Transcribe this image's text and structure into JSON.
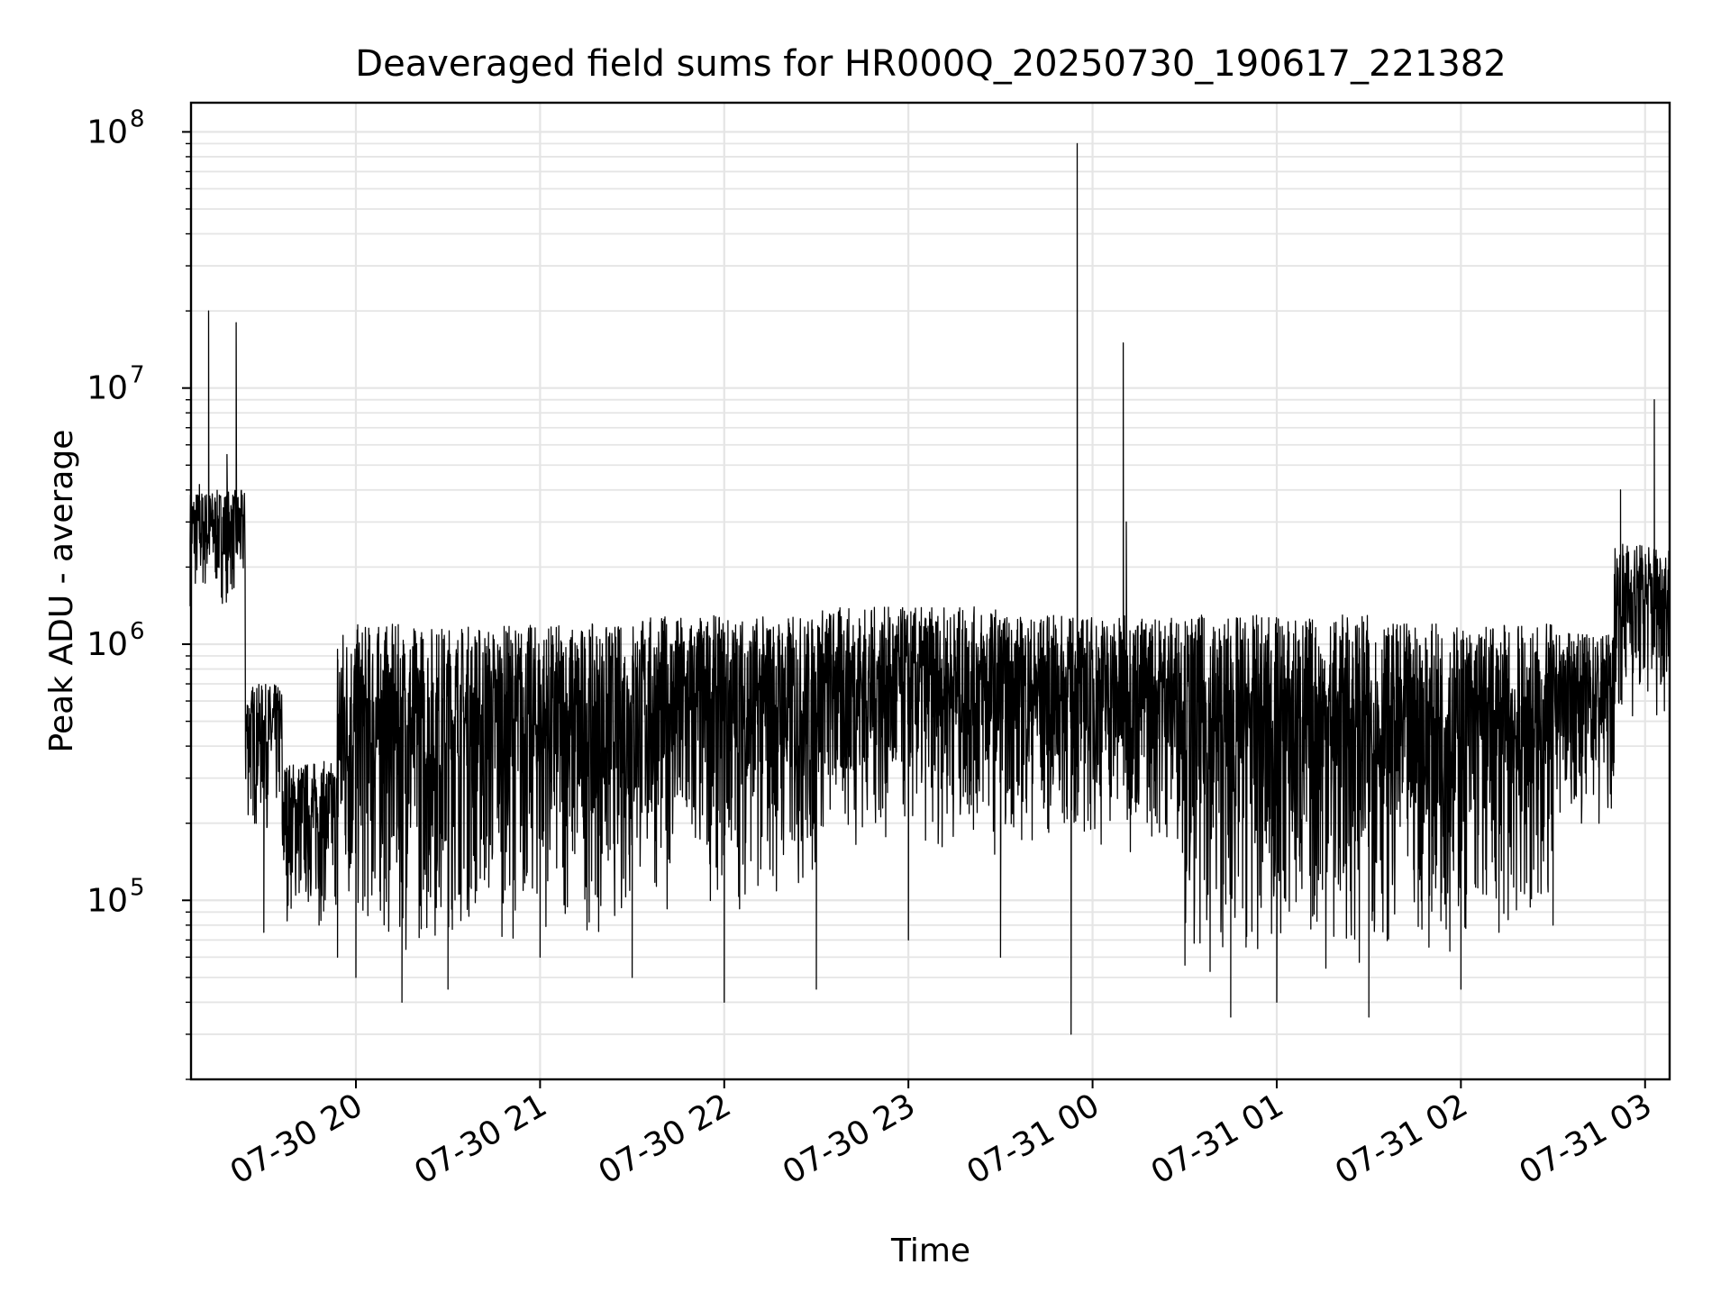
{
  "chart_data": {
    "type": "line",
    "title": "Deaveraged field sums for HR000Q_20250730_190617_221382",
    "xlabel": "Time",
    "ylabel": "Peak ADU - average",
    "yscale": "log",
    "ylim": [
      20000,
      130000000
    ],
    "xlim": [
      "2025-07-30 19:06:17",
      "2025-07-31 03:08:00"
    ],
    "grid": true,
    "line_color": "#000000",
    "grid_color": "#e5e5e5",
    "x_ticks": [
      {
        "t": "2025-07-30 20:00",
        "label": "07-30 20"
      },
      {
        "t": "2025-07-30 21:00",
        "label": "07-30 21"
      },
      {
        "t": "2025-07-30 22:00",
        "label": "07-30 22"
      },
      {
        "t": "2025-07-30 23:00",
        "label": "07-30 23"
      },
      {
        "t": "2025-07-31 00:00",
        "label": "07-31 00"
      },
      {
        "t": "2025-07-31 01:00",
        "label": "07-31 01"
      },
      {
        "t": "2025-07-31 02:00",
        "label": "07-31 02"
      },
      {
        "t": "2025-07-31 03:00",
        "label": "07-31 03"
      }
    ],
    "y_ticks": [
      {
        "value": 100000,
        "base": "10",
        "exp": "5"
      },
      {
        "value": 1000000,
        "base": "10",
        "exp": "6"
      },
      {
        "value": 10000000,
        "base": "10",
        "exp": "7"
      },
      {
        "value": 100000000,
        "base": "10",
        "exp": "8"
      }
    ],
    "series": [
      {
        "points": [
          [
            "2025-07-30 19:06",
            2500000
          ],
          [
            "2025-07-30 19:09",
            4200000
          ],
          [
            "2025-07-30 19:12",
            20000000
          ],
          [
            "2025-07-30 19:15",
            2000000
          ],
          [
            "2025-07-30 19:18",
            5500000
          ],
          [
            "2025-07-30 19:21",
            18000000
          ],
          [
            "2025-07-30 19:24",
            400000
          ],
          [
            "2025-07-30 19:27",
            200000
          ],
          [
            "2025-07-30 19:30",
            75000
          ],
          [
            "2025-07-30 19:36",
            200000
          ],
          [
            "2025-07-30 19:42",
            120000
          ],
          [
            "2025-07-30 19:48",
            80000
          ],
          [
            "2025-07-30 19:54",
            60000
          ],
          [
            "2025-07-30 20:00",
            50000
          ],
          [
            "2025-07-30 20:15",
            40000
          ],
          [
            "2025-07-30 20:30",
            45000
          ],
          [
            "2025-07-30 21:00",
            60000
          ],
          [
            "2025-07-30 21:30",
            50000
          ],
          [
            "2025-07-30 22:00",
            40000
          ],
          [
            "2025-07-30 22:30",
            45000
          ],
          [
            "2025-07-30 23:00",
            70000
          ],
          [
            "2025-07-30 23:30",
            60000
          ],
          [
            "2025-07-30 23:53",
            30000
          ],
          [
            "2025-07-30 23:55",
            90000000
          ],
          [
            "2025-07-31 00:10",
            15000000
          ],
          [
            "2025-07-31 00:11",
            3000000
          ],
          [
            "2025-07-31 00:45",
            35000
          ],
          [
            "2025-07-31 01:00",
            40000
          ],
          [
            "2025-07-31 01:30",
            35000
          ],
          [
            "2025-07-31 02:00",
            45000
          ],
          [
            "2025-07-31 02:30",
            80000
          ],
          [
            "2025-07-31 02:45",
            200000
          ],
          [
            "2025-07-31 02:52",
            4000000
          ],
          [
            "2025-07-31 03:00",
            1500000
          ],
          [
            "2025-07-31 03:03",
            9000000
          ],
          [
            "2025-07-31 03:08",
            1400000
          ]
        ],
        "band_segments": [
          {
            "from": "2025-07-30 19:06",
            "to": "2025-07-30 19:24",
            "low": 1400000,
            "high": 4000000
          },
          {
            "from": "2025-07-30 19:24",
            "to": "2025-07-30 19:36",
            "low": 180000,
            "high": 700000
          },
          {
            "from": "2025-07-30 19:36",
            "to": "2025-07-30 19:54",
            "low": 80000,
            "high": 350000
          },
          {
            "from": "2025-07-30 19:54",
            "to": "2025-07-30 20:30",
            "low": 60000,
            "high": 1200000
          },
          {
            "from": "2025-07-30 20:30",
            "to": "2025-07-30 21:30",
            "low": 70000,
            "high": 1200000
          },
          {
            "from": "2025-07-30 21:30",
            "to": "2025-07-30 22:30",
            "low": 90000,
            "high": 1300000
          },
          {
            "from": "2025-07-30 22:30",
            "to": "2025-07-30 23:30",
            "low": 150000,
            "high": 1400000
          },
          {
            "from": "2025-07-30 23:30",
            "to": "2025-07-31 00:30",
            "low": 150000,
            "high": 1300000
          },
          {
            "from": "2025-07-31 00:30",
            "to": "2025-07-31 01:30",
            "low": 50000,
            "high": 1300000
          },
          {
            "from": "2025-07-31 01:30",
            "to": "2025-07-31 02:30",
            "low": 60000,
            "high": 1200000
          },
          {
            "from": "2025-07-31 02:30",
            "to": "2025-07-31 02:50",
            "low": 200000,
            "high": 1100000
          },
          {
            "from": "2025-07-31 02:50",
            "to": "2025-07-31 03:08",
            "low": 500000,
            "high": 2500000
          }
        ]
      }
    ]
  }
}
